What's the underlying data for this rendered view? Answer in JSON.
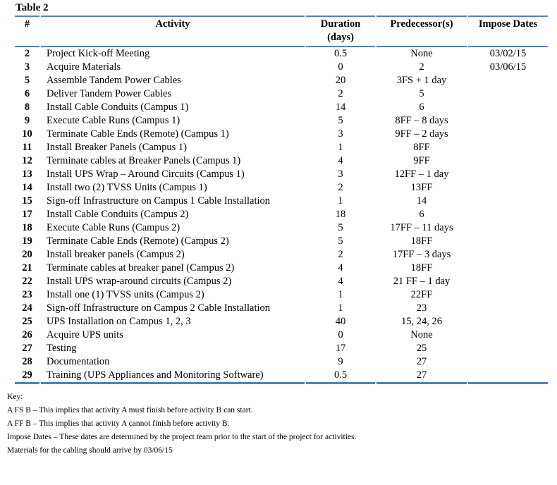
{
  "page": {
    "title": "Table 2"
  },
  "colors": {
    "table_border": "#4f81bd",
    "text": "#000000",
    "background": "#ffffff"
  },
  "table": {
    "columns": {
      "num": "#",
      "activity": "Activity",
      "duration_line1": "Duration",
      "duration_line2": "(days)",
      "predecessors": "Predecessor(s)",
      "impose_dates": "Impose Dates"
    },
    "rows": [
      {
        "num": "2",
        "activity": "Project Kick-off Meeting",
        "duration": "0.5",
        "predecessors": "None",
        "impose_date": "03/02/15"
      },
      {
        "num": "3",
        "activity": "Acquire Materials",
        "duration": "0",
        "predecessors": "2",
        "impose_date": "03/06/15"
      },
      {
        "num": "5",
        "activity": "Assemble Tandem Power Cables",
        "duration": "20",
        "predecessors": "3FS + 1 day",
        "impose_date": ""
      },
      {
        "num": "6",
        "activity": "Deliver Tandem Power Cables",
        "duration": "2",
        "predecessors": "5",
        "impose_date": ""
      },
      {
        "num": "8",
        "activity": "Install Cable Conduits (Campus 1)",
        "duration": "14",
        "predecessors": "6",
        "impose_date": ""
      },
      {
        "num": "9",
        "activity": "Execute Cable Runs (Campus 1)",
        "duration": "5",
        "predecessors": "8FF – 8 days",
        "impose_date": ""
      },
      {
        "num": "10",
        "activity": "Terminate Cable Ends (Remote) (Campus 1)",
        "duration": "3",
        "predecessors": "9FF – 2 days",
        "impose_date": ""
      },
      {
        "num": "11",
        "activity": "Install Breaker Panels (Campus 1)",
        "duration": "1",
        "predecessors": "8FF",
        "impose_date": ""
      },
      {
        "num": "12",
        "activity": "Terminate cables at Breaker Panels (Campus 1)",
        "duration": "4",
        "predecessors": "9FF",
        "impose_date": ""
      },
      {
        "num": "13",
        "activity": "Install UPS Wrap – Around Circuits (Campus 1)",
        "duration": "3",
        "predecessors": "12FF – 1 day",
        "impose_date": ""
      },
      {
        "num": "14",
        "activity": "Install two (2) TVSS Units (Campus 1)",
        "duration": "2",
        "predecessors": "13FF",
        "impose_date": ""
      },
      {
        "num": "15",
        "activity": "Sign-off Infrastructure on Campus 1 Cable Installation",
        "duration": "1",
        "predecessors": "14",
        "impose_date": ""
      },
      {
        "num": "17",
        "activity": "Install Cable Conduits (Campus 2)",
        "duration": "18",
        "predecessors": "6",
        "impose_date": ""
      },
      {
        "num": "18",
        "activity": "Execute Cable Runs (Campus 2)",
        "duration": "5",
        "predecessors": "17FF – 11 days",
        "impose_date": ""
      },
      {
        "num": "19",
        "activity": "Terminate Cable Ends (Remote) (Campus 2)",
        "duration": "5",
        "predecessors": "18FF",
        "impose_date": ""
      },
      {
        "num": "20",
        "activity": "Install breaker panels (Campus 2)",
        "duration": "2",
        "predecessors": "17FF – 3 days",
        "impose_date": ""
      },
      {
        "num": "21",
        "activity": "Terminate cables at breaker panel (Campus 2)",
        "duration": "4",
        "predecessors": "18FF",
        "impose_date": ""
      },
      {
        "num": "22",
        "activity": "Install UPS wrap-around circuits (Campus 2)",
        "duration": "4",
        "predecessors": "21 FF – 1 day",
        "impose_date": ""
      },
      {
        "num": "23",
        "activity": "Install one (1) TVSS units (Campus 2)",
        "duration": "1",
        "predecessors": "22FF",
        "impose_date": ""
      },
      {
        "num": "24",
        "activity": "Sign-off Infrastructure on Campus 2 Cable Installation",
        "duration": "1",
        "predecessors": "23",
        "impose_date": ""
      },
      {
        "num": "25",
        "activity": "UPS Installation on Campus 1, 2, 3",
        "duration": "40",
        "predecessors": "15, 24, 26",
        "impose_date": ""
      },
      {
        "num": "26",
        "activity": "Acquire UPS units",
        "duration": "0",
        "predecessors": "None",
        "impose_date": ""
      },
      {
        "num": "27",
        "activity": "Testing",
        "duration": "17",
        "predecessors": "25",
        "impose_date": ""
      },
      {
        "num": "28",
        "activity": "Documentation",
        "duration": "9",
        "predecessors": "27",
        "impose_date": ""
      },
      {
        "num": "29",
        "activity": "Training (UPS Appliances and Monitoring Software)",
        "duration": "0.5",
        "predecessors": "27",
        "impose_date": ""
      }
    ]
  },
  "key": {
    "heading": "Key:",
    "notes": [
      "A FS B – This implies that activity A must finish before activity B can start.",
      "A FF B – This implies that activity A cannot finish before activity B.",
      "Impose Dates – These dates are determined by the project team prior to the start of the project for activities.",
      "Materials for the cabling should arrive by 03/06/15"
    ]
  }
}
